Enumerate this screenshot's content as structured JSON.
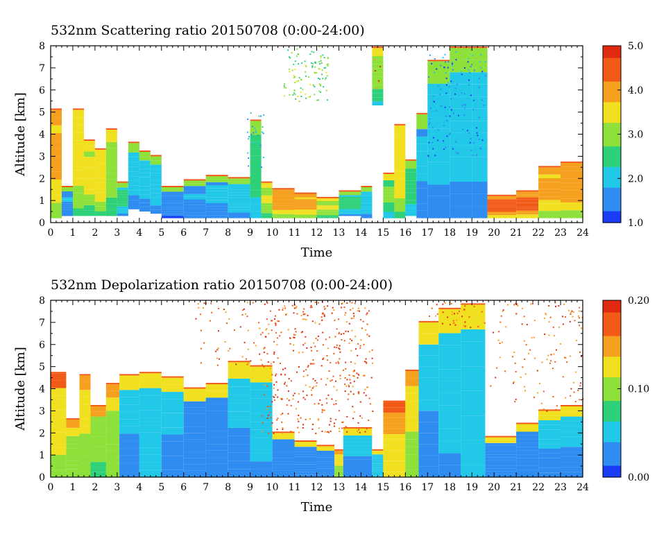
{
  "chart_data": [
    {
      "type": "heatmap",
      "title": "532nm Scattering ratio  20150708 (0:00-24:00)",
      "xlabel": "Time",
      "ylabel": "Altitude [km]",
      "xlim": [
        0,
        24
      ],
      "ylim": [
        0,
        8
      ],
      "x_ticks": [
        "0",
        "1",
        "2",
        "3",
        "4",
        "5",
        "6",
        "7",
        "8",
        "9",
        "10",
        "11",
        "12",
        "13",
        "14",
        "15",
        "16",
        "17",
        "18",
        "19",
        "20",
        "21",
        "22",
        "23",
        "24"
      ],
      "y_ticks": [
        "0",
        "1",
        "2",
        "3",
        "4",
        "5",
        "6",
        "7",
        "8"
      ],
      "colorbar": {
        "range": [
          1.0,
          5.0
        ],
        "ticks": [
          "1.0",
          "2.0",
          "3.0",
          "4.0",
          "5.0"
        ]
      },
      "colorscale": [
        "#1a3cf5",
        "#2f8cf0",
        "#22c8e8",
        "#2fd07a",
        "#8ee03a",
        "#f0e020",
        "#f6a020",
        "#f25a18",
        "#e02a10"
      ],
      "grid": false,
      "columns": [
        {
          "t0": 0.0,
          "t1": 0.5,
          "top": 5.1,
          "base": 0.2,
          "v": 3.6
        },
        {
          "t0": 0.5,
          "t1": 1.0,
          "top": 1.6,
          "base": 0.3,
          "v": 1.6
        },
        {
          "t0": 1.0,
          "t1": 1.5,
          "top": 5.1,
          "base": 0.3,
          "v": 3.3
        },
        {
          "t0": 1.5,
          "t1": 2.0,
          "top": 3.7,
          "base": 0.3,
          "v": 3.2
        },
        {
          "t0": 2.0,
          "t1": 2.5,
          "top": 3.3,
          "base": 0.3,
          "v": 3.4
        },
        {
          "t0": 2.5,
          "t1": 3.0,
          "top": 4.2,
          "base": 0.3,
          "v": 2.9
        },
        {
          "t0": 3.0,
          "t1": 3.5,
          "top": 1.8,
          "base": 0.3,
          "v": 2.2
        },
        {
          "t0": 3.5,
          "t1": 4.0,
          "top": 3.6,
          "base": 0.6,
          "v": 1.8
        },
        {
          "t0": 4.0,
          "t1": 4.5,
          "top": 3.2,
          "base": 0.5,
          "v": 1.9
        },
        {
          "t0": 4.5,
          "t1": 5.0,
          "top": 3.0,
          "base": 0.4,
          "v": 2.0
        },
        {
          "t0": 5.0,
          "t1": 6.0,
          "top": 1.6,
          "base": 0.2,
          "v": 1.5
        },
        {
          "t0": 6.0,
          "t1": 7.0,
          "top": 1.9,
          "base": 0.2,
          "v": 1.6
        },
        {
          "t0": 7.0,
          "t1": 8.0,
          "top": 2.1,
          "base": 0.2,
          "v": 1.7
        },
        {
          "t0": 8.0,
          "t1": 9.0,
          "top": 2.0,
          "base": 0.2,
          "v": 2.0
        },
        {
          "t0": 9.0,
          "t1": 9.5,
          "top": 4.6,
          "base": 0.2,
          "v": 2.4
        },
        {
          "t0": 9.5,
          "t1": 10.0,
          "top": 1.8,
          "base": 0.2,
          "v": 3.0
        },
        {
          "t0": 10.0,
          "t1": 11.0,
          "top": 1.5,
          "base": 0.2,
          "v": 3.8
        },
        {
          "t0": 11.0,
          "t1": 12.0,
          "top": 1.3,
          "base": 0.2,
          "v": 3.6
        },
        {
          "t0": 12.0,
          "t1": 13.0,
          "top": 1.1,
          "base": 0.2,
          "v": 3.0
        },
        {
          "t0": 13.0,
          "t1": 14.0,
          "top": 1.4,
          "base": 0.3,
          "v": 2.2
        },
        {
          "t0": 14.0,
          "t1": 14.5,
          "top": 1.6,
          "base": 0.2,
          "v": 2.0
        },
        {
          "t0": 14.5,
          "t1": 15.0,
          "top": 7.9,
          "base": 5.3,
          "v": 2.8
        },
        {
          "t0": 15.0,
          "t1": 15.5,
          "top": 2.2,
          "base": 0.2,
          "v": 2.6
        },
        {
          "t0": 15.5,
          "t1": 16.0,
          "top": 4.4,
          "base": 0.2,
          "v": 3.4
        },
        {
          "t0": 16.0,
          "t1": 16.5,
          "top": 2.8,
          "base": 0.3,
          "v": 2.4
        },
        {
          "t0": 16.5,
          "t1": 17.0,
          "top": 4.9,
          "base": 0.2,
          "v": 1.7
        },
        {
          "t0": 17.0,
          "t1": 18.0,
          "top": 7.3,
          "base": 0.2,
          "v": 1.8
        },
        {
          "t0": 18.0,
          "t1": 19.0,
          "top": 7.9,
          "base": 0.2,
          "v": 1.9
        },
        {
          "t0": 19.0,
          "t1": 19.7,
          "top": 7.9,
          "base": 0.2,
          "v": 1.9
        },
        {
          "t0": 19.7,
          "t1": 21.0,
          "top": 1.2,
          "base": 0.2,
          "v": 4.3
        },
        {
          "t0": 21.0,
          "t1": 22.0,
          "top": 1.4,
          "base": 0.2,
          "v": 4.2
        },
        {
          "t0": 22.0,
          "t1": 23.0,
          "top": 2.5,
          "base": 0.2,
          "v": 3.6
        },
        {
          "t0": 23.0,
          "t1": 24.0,
          "top": 2.7,
          "base": 0.2,
          "v": 3.8
        }
      ]
    },
    {
      "type": "heatmap",
      "title": "532nm Depolarization ratio  20150708 (0:00-24:00)",
      "xlabel": "Time",
      "ylabel": "Altitude [km]",
      "xlim": [
        0,
        24
      ],
      "ylim": [
        0,
        8
      ],
      "x_ticks": [
        "0",
        "1",
        "2",
        "3",
        "4",
        "5",
        "6",
        "7",
        "8",
        "9",
        "10",
        "11",
        "12",
        "13",
        "14",
        "15",
        "16",
        "17",
        "18",
        "19",
        "20",
        "21",
        "22",
        "23",
        "24"
      ],
      "y_ticks": [
        "0",
        "1",
        "2",
        "3",
        "4",
        "5",
        "6",
        "7",
        "8"
      ],
      "colorbar": {
        "range": [
          0.0,
          0.2
        ],
        "ticks": [
          "0.00",
          "0.10",
          "0.20"
        ]
      },
      "colorscale": [
        "#1a3cf5",
        "#2f8cf0",
        "#22c8e8",
        "#2fd07a",
        "#8ee03a",
        "#f0e020",
        "#f6a020",
        "#f25a18",
        "#e02a10"
      ],
      "grid": false,
      "columns": [
        {
          "t0": 0.0,
          "t1": 0.7,
          "top": 4.7,
          "base": 0.0,
          "v": 0.13
        },
        {
          "t0": 0.7,
          "t1": 1.3,
          "top": 2.6,
          "base": 0.0,
          "v": 0.11
        },
        {
          "t0": 1.3,
          "t1": 1.8,
          "top": 4.6,
          "base": 0.0,
          "v": 0.12
        },
        {
          "t0": 1.8,
          "t1": 2.5,
          "top": 3.2,
          "base": 0.0,
          "v": 0.1
        },
        {
          "t0": 2.5,
          "t1": 3.1,
          "top": 4.2,
          "base": 0.0,
          "v": 0.11
        },
        {
          "t0": 3.1,
          "t1": 4.0,
          "top": 4.6,
          "base": 0.0,
          "v": 0.04
        },
        {
          "t0": 4.0,
          "t1": 5.0,
          "top": 4.7,
          "base": 0.0,
          "v": 0.05
        },
        {
          "t0": 5.0,
          "t1": 6.0,
          "top": 4.5,
          "base": 0.0,
          "v": 0.04
        },
        {
          "t0": 6.0,
          "t1": 7.0,
          "top": 4.0,
          "base": 0.0,
          "v": 0.035
        },
        {
          "t0": 7.0,
          "t1": 8.0,
          "top": 4.2,
          "base": 0.0,
          "v": 0.035
        },
        {
          "t0": 8.0,
          "t1": 9.0,
          "top": 5.2,
          "base": 0.0,
          "v": 0.04
        },
        {
          "t0": 9.0,
          "t1": 10.0,
          "top": 5.0,
          "base": 0.0,
          "v": 0.045
        },
        {
          "t0": 10.0,
          "t1": 11.0,
          "top": 2.0,
          "base": 0.0,
          "v": 0.03
        },
        {
          "t0": 11.0,
          "t1": 12.0,
          "top": 1.6,
          "base": 0.0,
          "v": 0.03
        },
        {
          "t0": 12.0,
          "t1": 12.8,
          "top": 1.4,
          "base": 0.0,
          "v": 0.03
        },
        {
          "t0": 12.8,
          "t1": 13.2,
          "top": 1.2,
          "base": 0.0,
          "v": 0.12
        },
        {
          "t0": 13.2,
          "t1": 14.5,
          "top": 2.2,
          "base": 0.0,
          "v": 0.04
        },
        {
          "t0": 14.5,
          "t1": 15.0,
          "top": 1.2,
          "base": 0.0,
          "v": 0.05
        },
        {
          "t0": 15.0,
          "t1": 16.0,
          "top": 3.4,
          "base": 0.0,
          "v": 0.14
        },
        {
          "t0": 16.0,
          "t1": 16.6,
          "top": 4.8,
          "base": 0.0,
          "v": 0.12
        },
        {
          "t0": 16.6,
          "t1": 17.5,
          "top": 7.0,
          "base": 0.0,
          "v": 0.04
        },
        {
          "t0": 17.5,
          "t1": 18.5,
          "top": 7.6,
          "base": 0.0,
          "v": 0.045
        },
        {
          "t0": 18.5,
          "t1": 19.6,
          "top": 7.8,
          "base": 0.0,
          "v": 0.05
        },
        {
          "t0": 19.6,
          "t1": 21.0,
          "top": 1.8,
          "base": 0.0,
          "v": 0.035
        },
        {
          "t0": 21.0,
          "t1": 22.0,
          "top": 2.4,
          "base": 0.0,
          "v": 0.035
        },
        {
          "t0": 22.0,
          "t1": 23.0,
          "top": 3.0,
          "base": 0.0,
          "v": 0.04
        },
        {
          "t0": 23.0,
          "t1": 24.0,
          "top": 3.2,
          "base": 0.0,
          "v": 0.04
        }
      ]
    }
  ]
}
